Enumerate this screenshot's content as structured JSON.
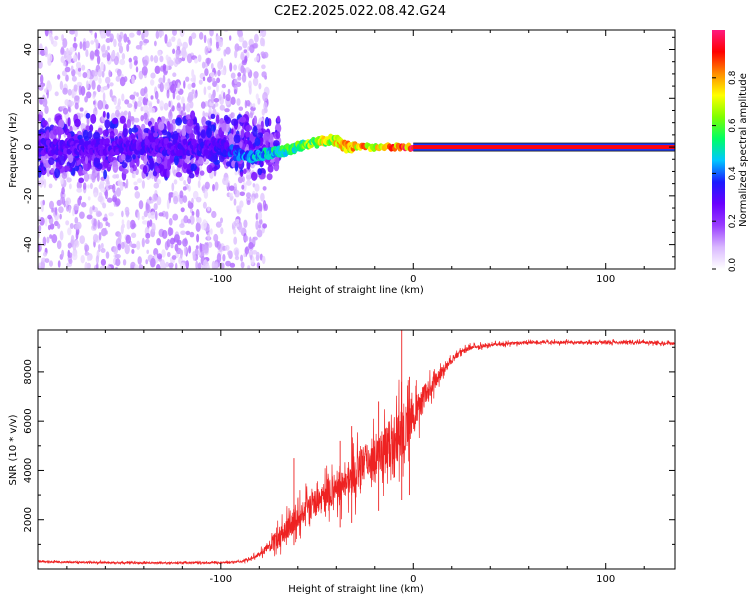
{
  "figure": {
    "title": "C2E2.2025.022.08.42.G24"
  },
  "chart_data": [
    {
      "type": "heatmap",
      "title": "C2E2.2025.022.08.42.G24",
      "xlabel": "Height of straight line (km)",
      "ylabel": "Frequency (Hz)",
      "xlim": [
        -195,
        136
      ],
      "ylim": [
        -50,
        48
      ],
      "x_ticks": [
        -100,
        0,
        100
      ],
      "x_tick_labels": [
        "-100",
        "0",
        "100"
      ],
      "y_ticks": [
        -40,
        -20,
        0,
        20,
        40
      ],
      "y_tick_labels": [
        "-40",
        "-20",
        "0",
        "20",
        "40"
      ],
      "colorbar": {
        "label": "Normalized spectral amplitude",
        "range": [
          0,
          1
        ],
        "ticks": [
          0,
          0.2,
          0.4,
          0.6,
          0.8
        ],
        "tick_labels": [
          "0.0",
          "0.2",
          "0.4",
          "0.6",
          "0.8"
        ],
        "colors": [
          "#ffffff",
          "#d9b8ff",
          "#9a3dff",
          "#6a00ff",
          "#1a1aff",
          "#00c8ff",
          "#00ff64",
          "#7fff00",
          "#ffff00",
          "#ff8c00",
          "#ff0000",
          "#ff1a80"
        ]
      },
      "ridge": [
        {
          "x": -195,
          "y": 0,
          "amp": 0.3
        },
        {
          "x": -150,
          "y": 0,
          "amp": 0.3
        },
        {
          "x": -100,
          "y": 0,
          "amp": 0.32
        },
        {
          "x": -85,
          "y": -4,
          "amp": 0.45
        },
        {
          "x": -78,
          "y": -3,
          "amp": 0.5
        },
        {
          "x": -70,
          "y": -2,
          "amp": 0.55
        },
        {
          "x": -60,
          "y": 0,
          "amp": 0.6
        },
        {
          "x": -50,
          "y": 2,
          "amp": 0.7
        },
        {
          "x": -40,
          "y": 3,
          "amp": 0.75
        },
        {
          "x": -35,
          "y": 0,
          "amp": 0.8
        },
        {
          "x": -20,
          "y": 0,
          "amp": 0.8
        },
        {
          "x": -10,
          "y": 0,
          "amp": 0.85
        },
        {
          "x": 0,
          "y": 0,
          "amp": 0.95
        },
        {
          "x": 136,
          "y": 0,
          "amp": 0.95
        }
      ],
      "noise_region_x": [
        -195,
        -80
      ]
    },
    {
      "type": "line",
      "xlabel": "Height of straight line (km)",
      "ylabel": "SNR (10 * v/v)",
      "xlim": [
        -195,
        136
      ],
      "ylim": [
        0,
        9700
      ],
      "x_ticks": [
        -100,
        0,
        100
      ],
      "x_tick_labels": [
        "-100",
        "0",
        "100"
      ],
      "y_ticks": [
        2000,
        4000,
        6000,
        8000
      ],
      "y_tick_labels": [
        "2000",
        "4000",
        "6000",
        "8000"
      ],
      "series": [
        {
          "color": "#ee2222",
          "x": [
            -195,
            -180,
            -160,
            -140,
            -120,
            -100,
            -90,
            -85,
            -80,
            -75,
            -70,
            -65,
            -60,
            -55,
            -50,
            -45,
            -40,
            -35,
            -30,
            -25,
            -20,
            -15,
            -10,
            -5,
            0,
            5,
            10,
            15,
            20,
            25,
            30,
            40,
            50,
            60,
            80,
            100,
            120,
            136
          ],
          "y": [
            300,
            280,
            260,
            250,
            250,
            260,
            300,
            400,
            600,
            900,
            1300,
            1700,
            2100,
            2500,
            2700,
            3000,
            3300,
            3500,
            3900,
            4300,
            4600,
            4900,
            5200,
            5700,
            6200,
            6900,
            7500,
            8000,
            8500,
            8800,
            9000,
            9100,
            9150,
            9200,
            9200,
            9200,
            9200,
            9150
          ],
          "noise_amp": [
            80,
            80,
            80,
            80,
            80,
            80,
            80,
            120,
            200,
            450,
            900,
            1100,
            1000,
            1100,
            1300,
            1500,
            1300,
            1500,
            1800,
            1700,
            1800,
            2000,
            2200,
            2400,
            1800,
            1200,
            700,
            500,
            350,
            250,
            200,
            150,
            150,
            130,
            130,
            130,
            130,
            130
          ],
          "peaks": [
            {
              "x": -62,
              "y": 4500
            },
            {
              "x": -38,
              "y": 5200
            },
            {
              "x": -32,
              "y": 5800
            },
            {
              "x": -18,
              "y": 6800
            },
            {
              "x": -6,
              "y": 9700
            },
            {
              "x": -2,
              "y": 7800
            }
          ]
        }
      ]
    }
  ]
}
